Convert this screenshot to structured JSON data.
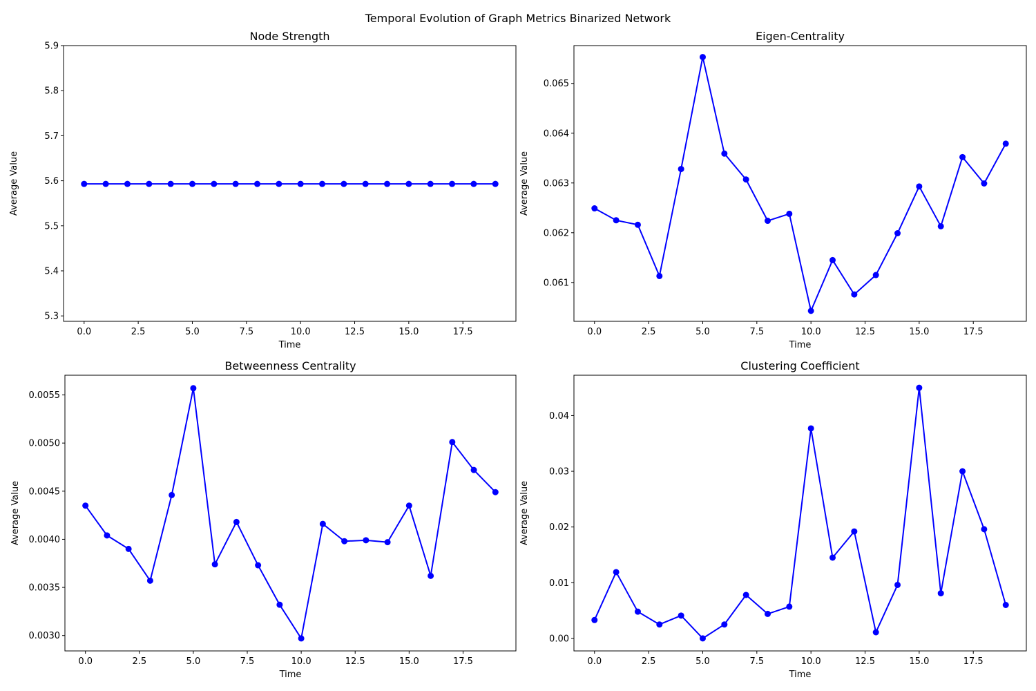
{
  "figure_title": "Temporal Evolution of Graph Metrics Binarized Network",
  "colors": {
    "series": "#0000ff",
    "axis": "#000000"
  },
  "chart_data": [
    {
      "type": "line",
      "title": "Node Strength",
      "xlabel": "Time",
      "ylabel": "Average Value",
      "xlim": [
        -0.95,
        19.95
      ],
      "ylim": [
        5.288,
        5.9
      ],
      "xticks": [
        0,
        2.5,
        5,
        7.5,
        10,
        12.5,
        15,
        17.5
      ],
      "xtick_labels": [
        "0.0",
        "2.5",
        "5.0",
        "7.5",
        "10.0",
        "12.5",
        "15.0",
        "17.5"
      ],
      "yticks": [
        5.3,
        5.4,
        5.5,
        5.6,
        5.7,
        5.8,
        5.9
      ],
      "ytick_labels": [
        "5.3",
        "5.4",
        "5.5",
        "5.6",
        "5.7",
        "5.8",
        "5.9"
      ],
      "grid": false,
      "x": [
        0,
        1,
        2,
        3,
        4,
        5,
        6,
        7,
        8,
        9,
        10,
        11,
        12,
        13,
        14,
        15,
        16,
        17,
        18,
        19
      ],
      "y": [
        5.593,
        5.593,
        5.593,
        5.593,
        5.593,
        5.593,
        5.593,
        5.593,
        5.593,
        5.593,
        5.593,
        5.593,
        5.593,
        5.593,
        5.593,
        5.593,
        5.593,
        5.593,
        5.593,
        5.593
      ]
    },
    {
      "type": "line",
      "title": "Eigen-Centrality",
      "xlabel": "Time",
      "ylabel": "Average Value",
      "xlim": [
        -0.95,
        19.95
      ],
      "ylim": [
        0.06022,
        0.06576
      ],
      "xticks": [
        0,
        2.5,
        5,
        7.5,
        10,
        12.5,
        15,
        17.5
      ],
      "xtick_labels": [
        "0.0",
        "2.5",
        "5.0",
        "7.5",
        "10.0",
        "12.5",
        "15.0",
        "17.5"
      ],
      "yticks": [
        0.061,
        0.062,
        0.063,
        0.064,
        0.065
      ],
      "ytick_labels": [
        "0.061",
        "0.062",
        "0.063",
        "0.064",
        "0.065"
      ],
      "grid": false,
      "x": [
        0,
        1,
        2,
        3,
        4,
        5,
        6,
        7,
        8,
        9,
        10,
        11,
        12,
        13,
        14,
        15,
        16,
        17,
        18,
        19
      ],
      "y": [
        0.06249,
        0.06225,
        0.06216,
        0.06113,
        0.06328,
        0.06553,
        0.06359,
        0.06307,
        0.06224,
        0.06238,
        0.06043,
        0.06145,
        0.06076,
        0.06115,
        0.06199,
        0.06293,
        0.06213,
        0.06352,
        0.06299,
        0.06379
      ]
    },
    {
      "type": "line",
      "title": "Betweenness Centrality",
      "xlabel": "Time",
      "ylabel": "Average Value",
      "xlim": [
        -0.95,
        19.95
      ],
      "ylim": [
        0.00284,
        0.005705
      ],
      "xticks": [
        0,
        2.5,
        5,
        7.5,
        10,
        12.5,
        15,
        17.5
      ],
      "xtick_labels": [
        "0.0",
        "2.5",
        "5.0",
        "7.5",
        "10.0",
        "12.5",
        "15.0",
        "17.5"
      ],
      "yticks": [
        0.003,
        0.0035,
        0.004,
        0.0045,
        0.005,
        0.0055
      ],
      "ytick_labels": [
        "0.0030",
        "0.0035",
        "0.0040",
        "0.0045",
        "0.0050",
        "0.0055"
      ],
      "grid": false,
      "x": [
        0,
        1,
        2,
        3,
        4,
        5,
        6,
        7,
        8,
        9,
        10,
        11,
        12,
        13,
        14,
        15,
        16,
        17,
        18,
        19
      ],
      "y": [
        0.00435,
        0.00404,
        0.0039,
        0.00357,
        0.00446,
        0.00557,
        0.00374,
        0.00418,
        0.00373,
        0.00332,
        0.00297,
        0.00416,
        0.00398,
        0.00399,
        0.00397,
        0.00435,
        0.00362,
        0.00501,
        0.00472,
        0.00449
      ]
    },
    {
      "type": "line",
      "title": "Clustering Coefficient",
      "xlabel": "Time",
      "ylabel": "Average Value",
      "xlim": [
        -0.95,
        19.95
      ],
      "ylim": [
        -0.00225,
        0.04725
      ],
      "xticks": [
        0,
        2.5,
        5,
        7.5,
        10,
        12.5,
        15,
        17.5
      ],
      "xtick_labels": [
        "0.0",
        "2.5",
        "5.0",
        "7.5",
        "10.0",
        "12.5",
        "15.0",
        "17.5"
      ],
      "yticks": [
        0.0,
        0.01,
        0.02,
        0.03,
        0.04
      ],
      "ytick_labels": [
        "0.00",
        "0.01",
        "0.02",
        "0.03",
        "0.04"
      ],
      "grid": false,
      "x": [
        0,
        1,
        2,
        3,
        4,
        5,
        6,
        7,
        8,
        9,
        10,
        11,
        12,
        13,
        14,
        15,
        16,
        17,
        18,
        19
      ],
      "y": [
        0.0033,
        0.0119,
        0.0048,
        0.0025,
        0.0041,
        0.0,
        0.0025,
        0.0078,
        0.0044,
        0.0057,
        0.0377,
        0.0145,
        0.0192,
        0.0011,
        0.0096,
        0.045,
        0.0081,
        0.03,
        0.0196,
        0.006
      ]
    }
  ]
}
